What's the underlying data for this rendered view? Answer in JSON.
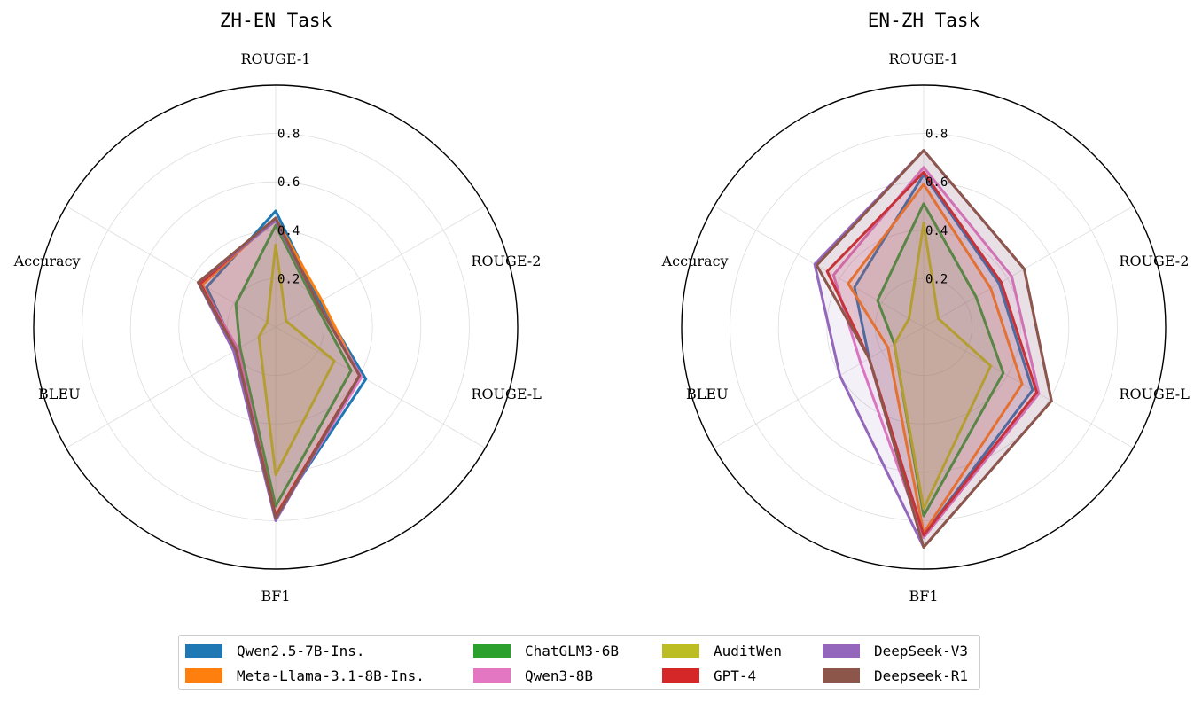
{
  "chart_data": [
    {
      "type": "radar",
      "title": "ZH-EN Task",
      "axes": [
        "ROUGE-1",
        "ROUGE-2",
        "ROUGE-L",
        "BF1",
        "BLEU",
        "Accuracy"
      ],
      "rticks": [
        "0.2",
        "0.4",
        "0.6",
        "0.8"
      ],
      "rlim": [
        0,
        1.0
      ],
      "series": [
        {
          "name": "Qwen2.5-7B-Ins.",
          "values": [
            0.48,
            0.21,
            0.43,
            0.78,
            0.19,
            0.33
          ]
        },
        {
          "name": "Meta-Llama-3.1-8B-Ins.",
          "values": [
            0.45,
            0.22,
            0.4,
            0.78,
            0.19,
            0.35
          ]
        },
        {
          "name": "ChatGLM3-6B",
          "values": [
            0.42,
            0.19,
            0.36,
            0.74,
            0.17,
            0.19
          ]
        },
        {
          "name": "Qwen3-8B",
          "values": [
            0.45,
            0.2,
            0.41,
            0.79,
            0.18,
            0.36
          ]
        },
        {
          "name": "AuditWen",
          "values": [
            0.34,
            0.05,
            0.28,
            0.61,
            0.08,
            0.04
          ]
        },
        {
          "name": "GPT-4",
          "values": [
            0.45,
            0.2,
            0.4,
            0.78,
            0.19,
            0.36
          ]
        },
        {
          "name": "DeepSeek-V3",
          "values": [
            0.44,
            0.2,
            0.4,
            0.8,
            0.2,
            0.37
          ]
        },
        {
          "name": "Deepseek-R1",
          "values": [
            0.45,
            0.2,
            0.4,
            0.79,
            0.19,
            0.37
          ]
        }
      ]
    },
    {
      "type": "radar",
      "title": "EN-ZH Task",
      "axes": [
        "ROUGE-1",
        "ROUGE-2",
        "ROUGE-L",
        "BF1",
        "BLEU",
        "Accuracy"
      ],
      "rticks": [
        "0.2",
        "0.4",
        "0.6",
        "0.8"
      ],
      "rlim": [
        0,
        1.0
      ],
      "series": [
        {
          "name": "Qwen2.5-7B-Ins.",
          "values": [
            0.63,
            0.36,
            0.52,
            0.86,
            0.26,
            0.33
          ]
        },
        {
          "name": "Meta-Llama-3.1-8B-Ins.",
          "values": [
            0.59,
            0.32,
            0.47,
            0.85,
            0.17,
            0.36
          ]
        },
        {
          "name": "ChatGLM3-6B",
          "values": [
            0.51,
            0.25,
            0.38,
            0.78,
            0.14,
            0.22
          ]
        },
        {
          "name": "Qwen3-8B",
          "values": [
            0.66,
            0.42,
            0.55,
            0.87,
            0.3,
            0.43
          ]
        },
        {
          "name": "AuditWen",
          "values": [
            0.43,
            0.07,
            0.32,
            0.75,
            0.14,
            0.07
          ]
        },
        {
          "name": "GPT-4",
          "values": [
            0.64,
            0.37,
            0.54,
            0.86,
            0.26,
            0.46
          ]
        },
        {
          "name": "DeepSeek-V3",
          "values": [
            0.73,
            0.48,
            0.61,
            0.91,
            0.4,
            0.52
          ]
        },
        {
          "name": "Deepseek-R1",
          "values": [
            0.73,
            0.48,
            0.61,
            0.91,
            0.26,
            0.51
          ]
        }
      ]
    }
  ],
  "colors": [
    "#1f77b4",
    "#ff7f0e",
    "#2ca02c",
    "#e377c2",
    "#bcbd22",
    "#d62728",
    "#9467bd",
    "#8c564b"
  ],
  "legend": {
    "placement": "bottom-center",
    "columns": [
      [
        "Qwen2.5-7B-Ins.",
        "Meta-Llama-3.1-8B-Ins."
      ],
      [
        "ChatGLM3-6B",
        "Qwen3-8B"
      ],
      [
        "AuditWen",
        "GPT-4"
      ],
      [
        "DeepSeek-V3",
        "Deepseek-R1"
      ]
    ]
  }
}
